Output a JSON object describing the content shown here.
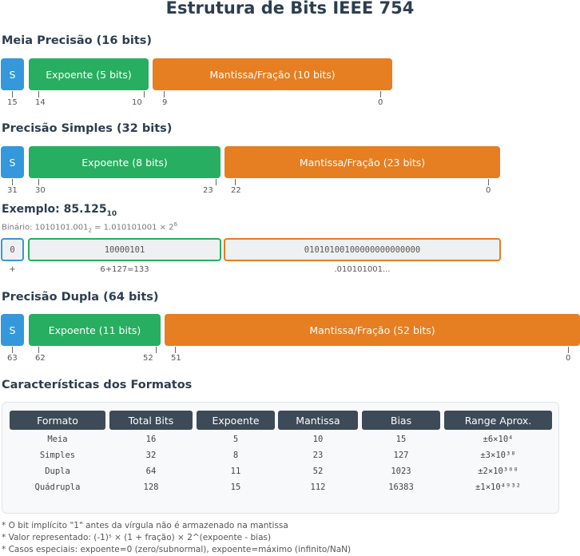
{
  "title": "Estrutura de Bits IEEE 754",
  "half": {
    "heading": "Meia Precisão (16 bits)",
    "sign": "S",
    "exponent": "Expoente (5 bits)",
    "mantissa": "Mantissa/Fração (10 bits)",
    "bits": [
      "15",
      "14",
      "10",
      "9",
      "0"
    ]
  },
  "single": {
    "heading": "Precisão Simples (32 bits)",
    "sign": "S",
    "exponent": "Expoente (8 bits)",
    "mantissa": "Mantissa/Fração (23 bits)",
    "bits": [
      "31",
      "30",
      "23",
      "22",
      "0"
    ]
  },
  "example": {
    "heading": "Exemplo: 85.125",
    "heading_sub": "10",
    "binary_prefix": "Binário: 1010101.001",
    "binary_sub": "2",
    "binary_mid": " = 1.010101001 × 2",
    "binary_sup": "6",
    "sign_value": "0",
    "exponent_value": "10000101",
    "mantissa_value": "01010100100000000000000",
    "sign_label": "+",
    "exponent_label": "6+127=133",
    "mantissa_label": ".010101001..."
  },
  "double": {
    "heading": "Precisão Dupla (64 bits)",
    "sign": "S",
    "exponent": "Expoente (11 bits)",
    "mantissa": "Mantissa/Fração (52 bits)",
    "bits": [
      "63",
      "62",
      "52",
      "51",
      "0"
    ]
  },
  "table": {
    "heading": "Características dos Formatos",
    "headers": [
      "Formato",
      "Total Bits",
      "Expoente",
      "Mantissa",
      "Bias",
      "Range Aprox."
    ],
    "rows": [
      [
        "Meia",
        "16",
        "5",
        "10",
        "15",
        "±6×10⁴"
      ],
      [
        "Simples",
        "32",
        "8",
        "23",
        "127",
        "±3×10³⁸"
      ],
      [
        "Dupla",
        "64",
        "11",
        "52",
        "1023",
        "±2×10³⁰⁸"
      ],
      [
        "Quádrupla",
        "128",
        "15",
        "112",
        "16383",
        "±1×10⁴⁹³²"
      ]
    ]
  },
  "notes": [
    "* O bit implícito \"1\" antes da vírgula não é armazenado na mantissa",
    "* Valor representado: (-1)ˢ × (1 + fração) × 2^(expoente - bias)",
    "* Casos especiais: expoente=0 (zero/subnormal), expoente=máximo (infinito/NaN)"
  ],
  "colors": {
    "sign": "#3498db",
    "exponent": "#27ae60",
    "mantissa": "#e67e22",
    "header": "#3d4a57"
  }
}
